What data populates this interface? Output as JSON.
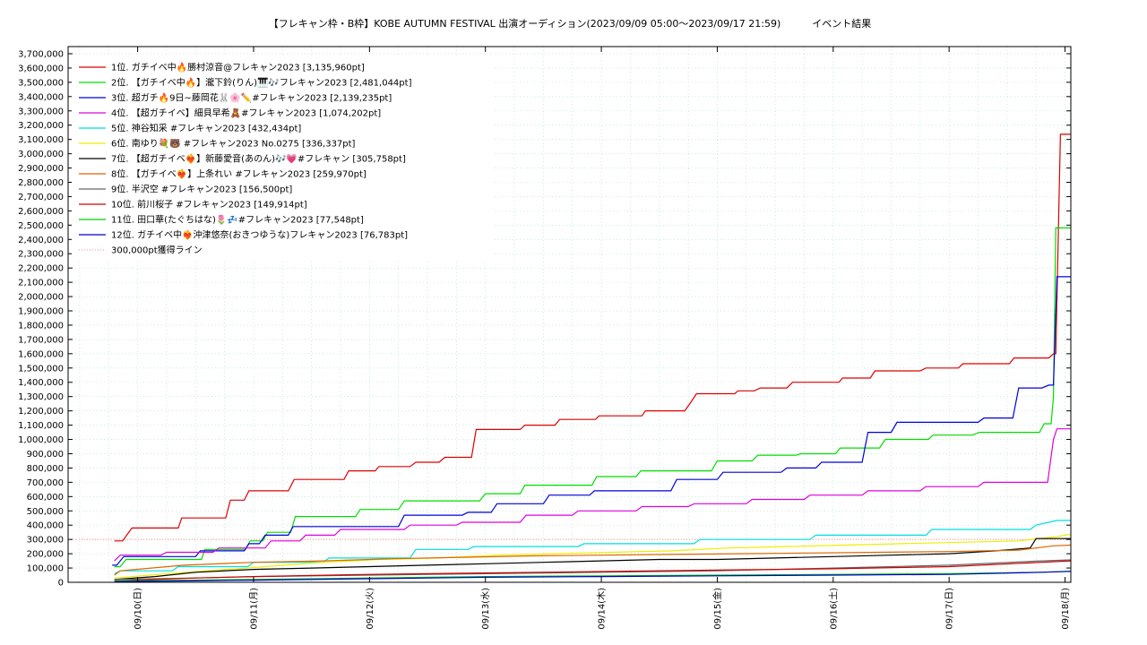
{
  "chart_data": {
    "type": "line",
    "title": "【フレキャン枠・B枠】KOBE AUTUMN FESTIVAL 出演オーディション(2023/09/09 05:00～2023/09/17 21:59)          イベント結果",
    "ylim": [
      0,
      3750000
    ],
    "xlim_days": [
      -0.6,
      8.05
    ],
    "yticks": [
      0,
      100000,
      200000,
      300000,
      400000,
      500000,
      600000,
      700000,
      800000,
      900000,
      1000000,
      1100000,
      1200000,
      1300000,
      1400000,
      1500000,
      1600000,
      1700000,
      1800000,
      1900000,
      2000000,
      2100000,
      2200000,
      2300000,
      2400000,
      2500000,
      2600000,
      2700000,
      2800000,
      2900000,
      3000000,
      3100000,
      3200000,
      3300000,
      3400000,
      3500000,
      3600000,
      3700000
    ],
    "ytick_labels": [
      "0",
      "100,000",
      "200,000",
      "300,000",
      "400,000",
      "500,000",
      "600,000",
      "700,000",
      "800,000",
      "900,000",
      "1,000,000",
      "1,100,000",
      "1,200,000",
      "1,300,000",
      "1,400,000",
      "1,500,000",
      "1,600,000",
      "1,700,000",
      "1,800,000",
      "1,900,000",
      "2,000,000",
      "2,100,000",
      "2,200,000",
      "2,300,000",
      "2,400,000",
      "2,500,000",
      "2,600,000",
      "2,700,000",
      "2,800,000",
      "2,900,000",
      "3,000,000",
      "3,100,000",
      "3,200,000",
      "3,300,000",
      "3,400,000",
      "3,500,000",
      "3,600,000",
      "3,700,000"
    ],
    "xtick_days": [
      0,
      1,
      2,
      3,
      4,
      5,
      6,
      7,
      8
    ],
    "xtick_labels": [
      "09/10(日)",
      "09/11(月)",
      "09/12(火)",
      "09/13(水)",
      "09/14(木)",
      "09/15(金)",
      "09/16(土)",
      "09/17(日)",
      "09/18(月)"
    ],
    "grid": true,
    "legend_position": "top-left",
    "series": [
      {
        "name": "1位. ガチイベ中🔥勝村涼音@フレキャン2023 [3,135,960pt]",
        "color": "#dd0000",
        "x": [
          -0.2,
          -0.13,
          -0.05,
          0.35,
          0.38,
          0.76,
          0.8,
          0.92,
          0.96,
          1.3,
          1.35,
          1.78,
          1.82,
          2.05,
          2.08,
          2.35,
          2.4,
          2.6,
          2.65,
          2.88,
          2.92,
          3.3,
          3.34,
          3.6,
          3.64,
          3.95,
          3.98,
          4.35,
          4.38,
          4.72,
          4.78,
          4.82,
          5.15,
          5.18,
          5.32,
          5.37,
          5.6,
          5.65,
          6.05,
          6.08,
          6.32,
          6.36,
          6.75,
          6.8,
          7.08,
          7.12,
          7.52,
          7.56,
          7.86,
          7.9,
          7.92,
          7.96,
          8.05
        ],
        "y": [
          290000,
          290000,
          380000,
          380000,
          450000,
          450000,
          575000,
          575000,
          640000,
          640000,
          720000,
          720000,
          780000,
          780000,
          810000,
          810000,
          840000,
          840000,
          875000,
          875000,
          1070000,
          1070000,
          1100000,
          1100000,
          1140000,
          1140000,
          1165000,
          1165000,
          1200000,
          1200000,
          1270000,
          1320000,
          1320000,
          1340000,
          1340000,
          1360000,
          1360000,
          1400000,
          1400000,
          1430000,
          1430000,
          1480000,
          1480000,
          1500000,
          1500000,
          1530000,
          1530000,
          1570000,
          1570000,
          1600000,
          1600000,
          3135960,
          3135960
        ]
      },
      {
        "name": "2位. 【ガチイベ中🔥】瀧下鈴(りん)🎹🎶フレキャン2023 [2,481,044pt]",
        "color": "#00dd00",
        "x": [
          -0.2,
          -0.15,
          -0.1,
          0.55,
          0.58,
          0.93,
          0.97,
          1.08,
          1.12,
          1.32,
          1.36,
          1.88,
          1.92,
          2.25,
          2.3,
          2.95,
          3.0,
          3.3,
          3.34,
          3.92,
          3.96,
          4.3,
          4.34,
          4.95,
          5.0,
          5.3,
          5.35,
          5.68,
          5.72,
          6.02,
          6.06,
          6.4,
          6.45,
          6.82,
          6.86,
          7.2,
          7.26,
          7.78,
          7.82,
          7.88,
          7.9,
          7.92,
          7.96,
          8.05
        ],
        "y": [
          110000,
          110000,
          160000,
          160000,
          230000,
          230000,
          290000,
          290000,
          350000,
          350000,
          460000,
          460000,
          510000,
          510000,
          570000,
          570000,
          620000,
          620000,
          680000,
          680000,
          740000,
          740000,
          780000,
          780000,
          850000,
          850000,
          890000,
          890000,
          900000,
          900000,
          940000,
          940000,
          1000000,
          1000000,
          1030000,
          1030000,
          1050000,
          1050000,
          1110000,
          1110000,
          1300000,
          2481044,
          2481044,
          2481044
        ]
      },
      {
        "name": "3位. 超ガチ🔥9日~藤岡花🐰🌸✏️#フレキャン2023 [2,139,235pt]",
        "color": "#0000dd",
        "x": [
          -0.22,
          -0.18,
          -0.12,
          0.5,
          0.54,
          0.92,
          0.96,
          1.05,
          1.1,
          1.3,
          1.34,
          2.25,
          2.3,
          2.8,
          2.85,
          3.05,
          3.1,
          3.5,
          3.55,
          3.9,
          3.94,
          4.6,
          4.65,
          5.0,
          5.05,
          5.55,
          5.6,
          5.85,
          5.9,
          6.25,
          6.3,
          6.5,
          6.55,
          7.25,
          7.3,
          7.55,
          7.6,
          7.8,
          7.86,
          7.9,
          7.93,
          8.05
        ],
        "y": [
          120000,
          120000,
          180000,
          180000,
          220000,
          220000,
          270000,
          270000,
          330000,
          330000,
          390000,
          390000,
          470000,
          470000,
          490000,
          490000,
          550000,
          550000,
          610000,
          610000,
          640000,
          640000,
          720000,
          720000,
          770000,
          770000,
          800000,
          800000,
          840000,
          840000,
          1050000,
          1050000,
          1120000,
          1120000,
          1150000,
          1150000,
          1360000,
          1360000,
          1380000,
          1380000,
          2139235,
          2139235
        ]
      },
      {
        "name": "4位. 【超ガチイベ】細貝早希🧸#フレキャン2023 [1,074,202pt]",
        "color": "#dd00dd",
        "x": [
          -0.2,
          -0.15,
          0.2,
          0.25,
          0.65,
          0.7,
          1.1,
          1.15,
          1.4,
          1.45,
          1.7,
          1.75,
          2.3,
          2.35,
          2.75,
          2.8,
          3.3,
          3.35,
          3.75,
          3.8,
          4.3,
          4.35,
          4.75,
          4.8,
          5.25,
          5.3,
          5.75,
          5.8,
          6.25,
          6.3,
          6.75,
          6.8,
          7.25,
          7.3,
          7.85,
          7.9,
          7.93,
          8.05
        ],
        "y": [
          150000,
          190000,
          190000,
          210000,
          210000,
          240000,
          240000,
          290000,
          290000,
          330000,
          330000,
          370000,
          370000,
          400000,
          400000,
          420000,
          420000,
          470000,
          470000,
          500000,
          500000,
          530000,
          530000,
          550000,
          550000,
          580000,
          580000,
          610000,
          610000,
          640000,
          640000,
          670000,
          670000,
          700000,
          700000,
          1000000,
          1074202,
          1074202
        ]
      },
      {
        "name": "5位. 神谷知采 #フレキャン2023 [432,434pt]",
        "color": "#00dddd",
        "x": [
          -0.2,
          -0.15,
          0.3,
          0.35,
          0.95,
          1.0,
          1.6,
          1.65,
          2.35,
          2.4,
          2.85,
          2.9,
          3.8,
          3.85,
          4.8,
          4.85,
          5.8,
          5.85,
          6.8,
          6.85,
          7.7,
          7.75,
          7.93,
          8.05
        ],
        "y": [
          60000,
          80000,
          80000,
          110000,
          110000,
          140000,
          140000,
          170000,
          170000,
          230000,
          230000,
          250000,
          250000,
          270000,
          270000,
          300000,
          300000,
          330000,
          330000,
          370000,
          370000,
          400000,
          432434,
          432434
        ]
      },
      {
        "name": "6位. 南ゆり💐🐻 #フレキャン2023 No.0275 [336,337pt]",
        "color": "#eeee00",
        "x": [
          -0.2,
          0.1,
          0.6,
          1.1,
          1.6,
          2.1,
          2.6,
          3.1,
          3.6,
          4.1,
          4.6,
          5.1,
          5.6,
          6.1,
          6.6,
          7.1,
          7.6,
          7.93,
          8.05
        ],
        "y": [
          30000,
          50000,
          80000,
          110000,
          140000,
          160000,
          170000,
          190000,
          200000,
          210000,
          220000,
          240000,
          250000,
          260000,
          270000,
          280000,
          290000,
          320000,
          336337
        ]
      },
      {
        "name": "7位. 【超ガチイベ❤️‍🔥】新藤愛音(あのん)🎶💗#フレキャン [305,758pt]",
        "color": "#000000",
        "x": [
          -0.2,
          0.15,
          0.5,
          1.0,
          1.5,
          2.0,
          2.5,
          3.0,
          3.5,
          4.0,
          4.5,
          5.0,
          5.5,
          6.0,
          6.5,
          7.0,
          7.4,
          7.7,
          7.75,
          8.05
        ],
        "y": [
          20000,
          40000,
          70000,
          90000,
          100000,
          110000,
          120000,
          130000,
          140000,
          150000,
          160000,
          160000,
          170000,
          180000,
          190000,
          200000,
          220000,
          240000,
          305758,
          305758
        ]
      },
      {
        "name": "8位. 【ガチイベ❤️‍🔥】上条れい #フレキャン2023 [259,970pt]",
        "color": "#dd6600",
        "x": [
          -0.2,
          -0.15,
          0.4,
          1.0,
          1.6,
          2.2,
          2.8,
          3.4,
          4.0,
          4.6,
          5.2,
          5.8,
          6.4,
          7.0,
          7.6,
          7.9,
          8.05
        ],
        "y": [
          50000,
          80000,
          120000,
          140000,
          150000,
          165000,
          175000,
          185000,
          190000,
          195000,
          200000,
          205000,
          210000,
          215000,
          225000,
          255000,
          259970
        ]
      },
      {
        "name": "9位. 半沢空 #フレキャン2023 [156,500pt]",
        "color": "#666666",
        "x": [
          -0.2,
          0.5,
          1.0,
          2.0,
          3.0,
          4.0,
          5.0,
          6.0,
          7.0,
          7.8,
          8.05
        ],
        "y": [
          20000,
          30000,
          40000,
          50000,
          60000,
          70000,
          80000,
          100000,
          120000,
          150000,
          156500
        ]
      },
      {
        "name": "10位. 前川桜子 #フレキャン2023 [149,914pt]",
        "color": "#cc0000",
        "x": [
          -0.2,
          0.5,
          1.0,
          2.0,
          3.0,
          4.0,
          5.0,
          6.0,
          7.0,
          7.8,
          8.05
        ],
        "y": [
          10000,
          30000,
          40000,
          55000,
          65000,
          75000,
          85000,
          95000,
          110000,
          140000,
          149914
        ]
      },
      {
        "name": "11位. 田口華(たぐちはな)🌷💤#フレキャン2023 [77,548pt]",
        "color": "#00cc00",
        "x": [
          -0.2,
          0.5,
          1.0,
          2.0,
          3.0,
          4.0,
          5.0,
          6.0,
          7.0,
          7.8,
          8.05
        ],
        "y": [
          10000,
          15000,
          20000,
          30000,
          40000,
          45000,
          50000,
          55000,
          60000,
          70000,
          77548
        ]
      },
      {
        "name": "12位. ガチイベ中❤️‍🔥沖津悠奈(おきつゆうな)フレキャン2023 [76,783pt]",
        "color": "#0000cc",
        "x": [
          -0.2,
          0.5,
          1.0,
          2.0,
          3.0,
          4.0,
          5.0,
          6.0,
          7.0,
          7.8,
          8.05
        ],
        "y": [
          5000,
          10000,
          15000,
          25000,
          35000,
          40000,
          45000,
          50000,
          55000,
          70000,
          76783
        ]
      }
    ],
    "reference_line": {
      "name": "300,000pt獲得ライン",
      "color": "#ff8888",
      "value": 300000
    }
  }
}
